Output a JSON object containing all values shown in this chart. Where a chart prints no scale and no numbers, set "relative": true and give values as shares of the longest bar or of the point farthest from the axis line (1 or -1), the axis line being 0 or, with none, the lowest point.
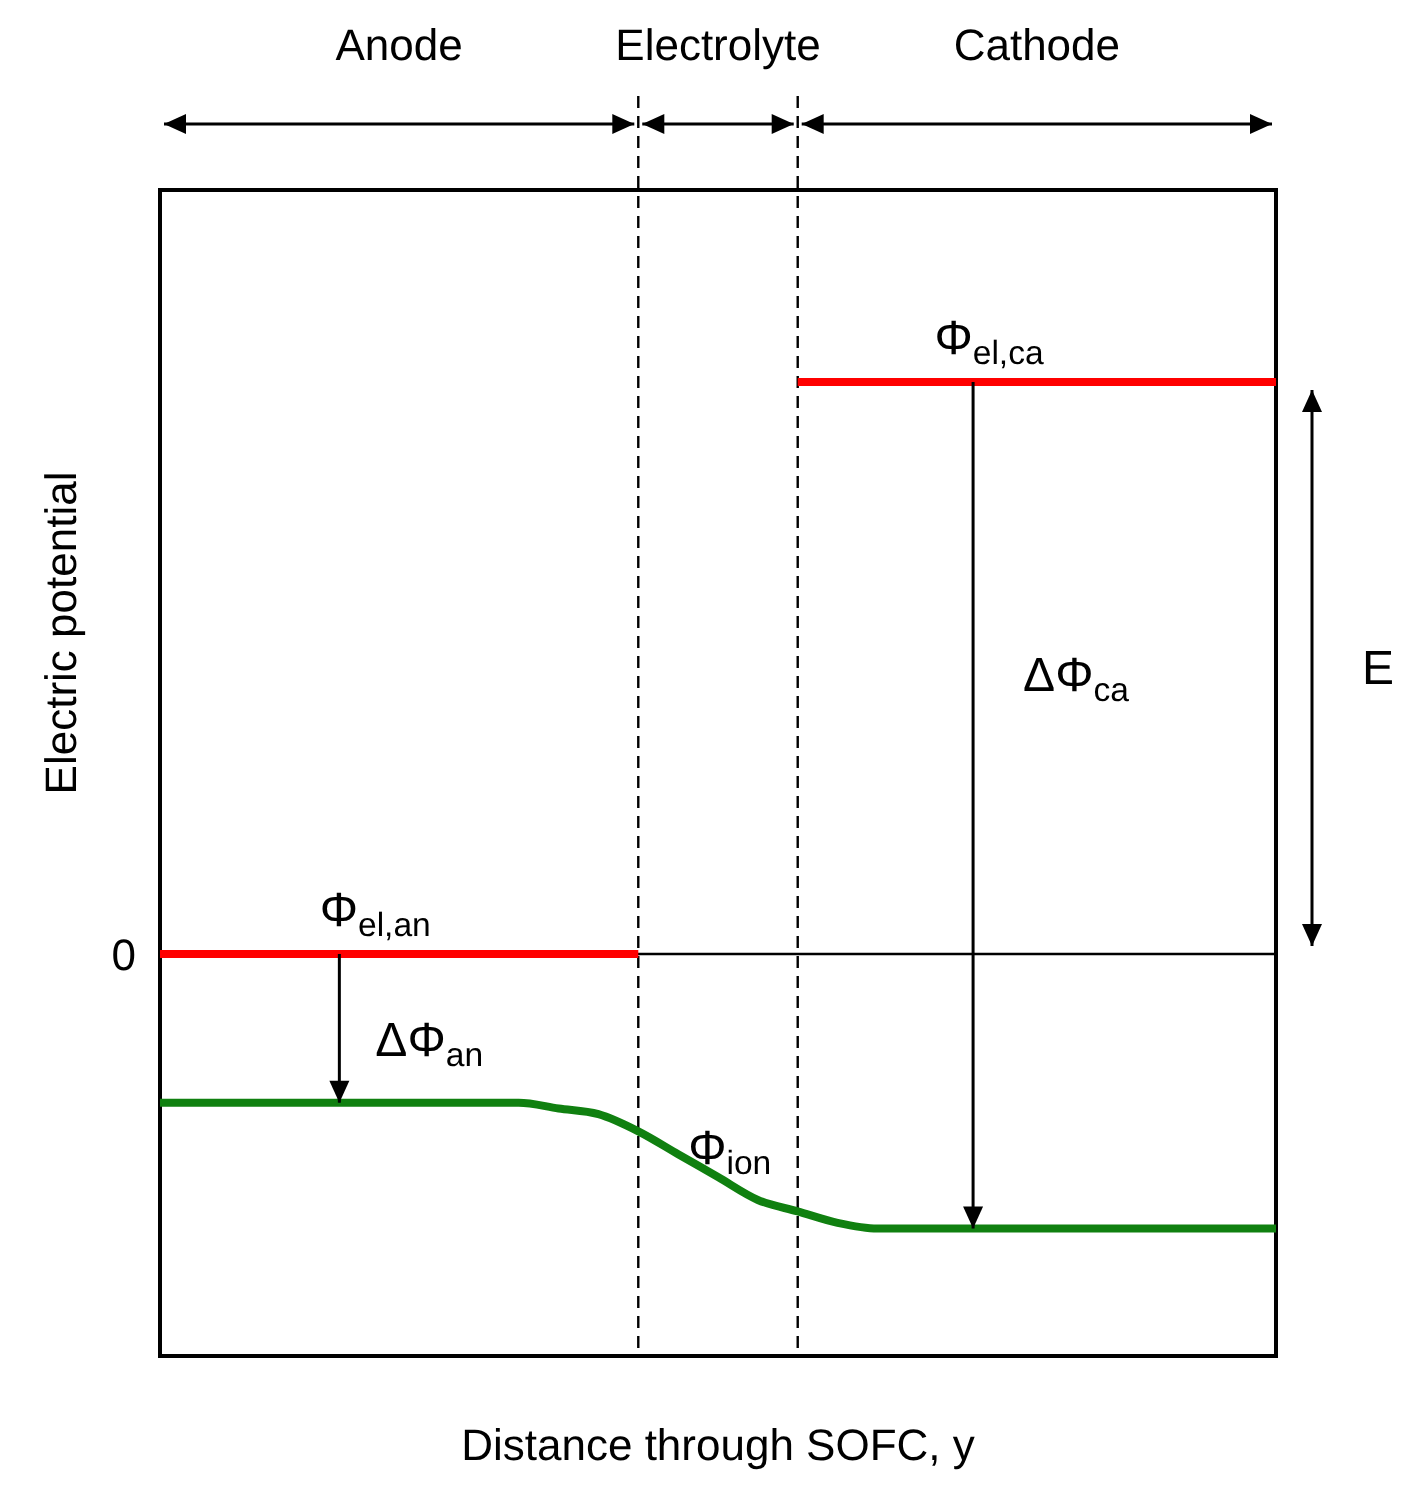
{
  "chart_data": {
    "type": "line",
    "relative": true,
    "xlabel": "Distance through SOFC, y",
    "ylabel": "Electric potential",
    "categories": [
      null,
      null,
      null,
      null,
      null,
      null,
      null,
      null,
      null,
      null,
      null,
      null,
      null,
      null,
      null,
      null,
      null,
      null,
      null,
      null,
      null,
      null,
      null,
      null,
      null,
      null,
      null,
      null,
      null
    ],
    "series": [
      {
        "name": "Φ$_{el,an}$",
        "color": "#ff0000",
        "values": [
          0,
          0,
          0,
          0,
          0,
          0,
          0,
          0,
          0,
          0,
          0,
          0,
          0,
          null,
          null,
          null,
          null,
          null,
          null,
          null,
          null,
          null,
          null,
          null,
          null,
          null,
          null,
          null,
          null
        ]
      },
      {
        "name": "Φ$_{el,ca}$",
        "color": "#ff0000",
        "values": [
          null,
          null,
          null,
          null,
          null,
          null,
          null,
          null,
          null,
          null,
          null,
          null,
          null,
          null,
          null,
          null,
          1,
          1,
          1,
          1,
          1,
          1,
          1,
          1,
          1,
          1,
          1,
          1,
          1
        ]
      },
      {
        "name": "Φ$_{ion}$",
        "color": "#108010",
        "values": [
          -0.26,
          -0.26,
          -0.26,
          -0.26,
          -0.26,
          -0.26,
          -0.26,
          -0.26,
          -0.26,
          -0.26,
          -0.27,
          -0.28,
          -0.31,
          -0.35,
          -0.39,
          -0.43,
          -0.45,
          -0.47,
          -0.48,
          -0.48,
          -0.48,
          -0.48,
          -0.48,
          -0.48,
          -0.48,
          -0.48,
          -0.48,
          -0.48,
          -0.48
        ]
      }
    ],
    "ref_lines": [
      {
        "axis": "y",
        "value": 0,
        "label": "0"
      }
    ],
    "annotations": [
      "Anode",
      "Electrolyte",
      "Cathode",
      "ΔΦ$_{an}$",
      "ΔΦ$_{ca}$",
      "E"
    ],
    "grid": false,
    "marker": "none",
    "line_style": "solid"
  }
}
